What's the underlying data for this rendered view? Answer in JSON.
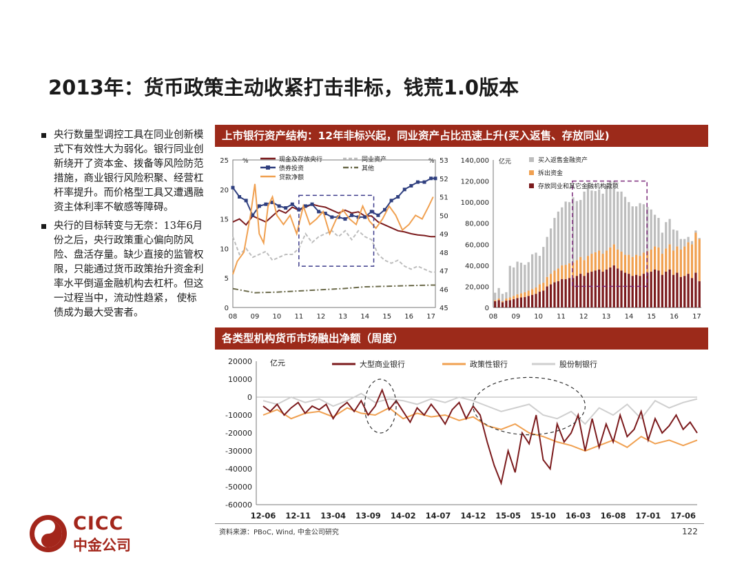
{
  "slide": {
    "title": "2013年：货币政策主动收紧打击非标，钱荒1.0版本",
    "bullets": [
      "央行数量型调控工具在同业创新模式下有效性大为弱化。银行同业创新绕开了资本金、拨备等风险防范措施，商业银行风险积聚、经营杠杆率提升。而价格型工具又遭遇融资主体利率不敏感等障碍。",
      "央行的目标转变与无奈：13年6月份之后，央行政策重心偏向防风险、盘活存量。缺少直接的监管权限，只能通过货币政策抬升资金利率水平倒逼金融机构去杠杆。但这一过程当中，流动性趋紧， 使标债成为最大受害者。"
    ],
    "source": "资料来源：PBoC, Wind, 中金公司研究",
    "page_number": "122",
    "logo": {
      "en": "CICC",
      "cn": "中金公司"
    }
  },
  "panel1": {
    "banner": "上市银行资产结构：12年非标兴起，同业资产占比迅速上升(买入返售、存放同业)"
  },
  "panel2": {
    "banner": "各类型机构货币市场融出净额（周度）"
  },
  "colors": {
    "maroon": "#7b1a1c",
    "orange": "#f0a050",
    "navy": "#2f3f7f",
    "gray": "#bdbdbd",
    "olive": "#6b6a4a",
    "banner": "#9c2a1a"
  },
  "chart_data": [
    {
      "type": "line",
      "left_unit": "%",
      "right_unit": "%",
      "x_ticks": [
        "08",
        "09",
        "10",
        "11",
        "12",
        "13",
        "14",
        "15",
        "16",
        "17"
      ],
      "ylim_left": [
        0,
        25
      ],
      "yticks_left": [
        0,
        5,
        10,
        15,
        20,
        25
      ],
      "ylim_right": [
        45,
        53
      ],
      "yticks_right": [
        45,
        46,
        47,
        48,
        49,
        50,
        51,
        52,
        53
      ],
      "series": [
        {
          "name": "现金及存放央行",
          "axis": "left",
          "color": "#7b1a1c",
          "style": "solid",
          "x": [
            2008.0,
            2008.3,
            2008.6,
            2008.9,
            2009.2,
            2009.5,
            2009.8,
            2010.1,
            2010.4,
            2010.7,
            2011.0,
            2011.3,
            2011.6,
            2011.9,
            2012.2,
            2012.5,
            2012.8,
            2013.1,
            2013.4,
            2013.7,
            2014.0,
            2014.3,
            2014.6,
            2014.9,
            2015.2,
            2015.5,
            2015.8,
            2016.1,
            2016.4,
            2016.7,
            2017.0,
            2017.2
          ],
          "y": [
            14.5,
            15.0,
            14.0,
            15.5,
            15.0,
            14.5,
            15.5,
            16.5,
            16.0,
            17.0,
            16.5,
            17.0,
            17.5,
            17.2,
            17.0,
            16.5,
            16.0,
            16.5,
            16.0,
            16.2,
            15.5,
            15.5,
            14.5,
            14.0,
            13.5,
            13.0,
            12.8,
            12.5,
            12.3,
            12.2,
            12.0,
            12.0
          ]
        },
        {
          "name": "债券投资",
          "axis": "right",
          "color": "#2f3f7f",
          "style": "solid-square",
          "x": [
            2008.0,
            2008.3,
            2008.6,
            2008.9,
            2009.2,
            2009.5,
            2009.8,
            2010.1,
            2010.4,
            2010.7,
            2011.0,
            2011.3,
            2011.6,
            2011.9,
            2012.2,
            2012.5,
            2012.8,
            2013.1,
            2013.4,
            2013.7,
            2014.0,
            2014.3,
            2014.6,
            2014.9,
            2015.2,
            2015.5,
            2015.8,
            2016.1,
            2016.4,
            2016.7,
            2017.0,
            2017.2
          ],
          "y": [
            51.5,
            51.0,
            50.8,
            50.0,
            50.5,
            50.6,
            50.7,
            50.5,
            50.4,
            50.6,
            50.3,
            50.5,
            50.6,
            50.2,
            50.1,
            49.9,
            49.9,
            49.8,
            50.0,
            49.9,
            49.9,
            50.2,
            50.0,
            50.3,
            50.8,
            51.0,
            51.4,
            51.6,
            51.8,
            51.8,
            52.0,
            52.0
          ]
        },
        {
          "name": "同业资产",
          "axis": "left",
          "color": "#bdbdbd",
          "style": "dashed",
          "x": [
            2008.0,
            2008.3,
            2008.6,
            2008.9,
            2009.2,
            2009.5,
            2009.8,
            2010.1,
            2010.4,
            2010.7,
            2011.0,
            2011.3,
            2011.6,
            2011.9,
            2012.2,
            2012.5,
            2012.8,
            2013.1,
            2013.4,
            2013.7,
            2014.0,
            2014.3,
            2014.6,
            2014.9,
            2015.2,
            2015.5,
            2015.8,
            2016.1,
            2016.4,
            2016.7,
            2017.0,
            2017.2
          ],
          "y": [
            12.0,
            9.0,
            10.0,
            8.5,
            9.0,
            9.5,
            8.0,
            8.5,
            9.0,
            9.0,
            10.0,
            12.5,
            11.0,
            12.0,
            12.5,
            13.0,
            12.0,
            13.0,
            11.5,
            13.0,
            12.0,
            11.5,
            9.0,
            8.0,
            7.5,
            8.0,
            7.0,
            6.5,
            7.0,
            6.5,
            6.0,
            6.0
          ]
        },
        {
          "name": "其他",
          "axis": "left",
          "color": "#6b6a4a",
          "style": "dashdot",
          "x": [
            2008.0,
            2009.0,
            2010.0,
            2011.0,
            2012.0,
            2013.0,
            2014.0,
            2015.0,
            2016.0,
            2017.0,
            2017.2
          ],
          "y": [
            3.2,
            2.5,
            2.6,
            2.8,
            3.0,
            3.2,
            3.5,
            3.6,
            3.7,
            3.8,
            3.8
          ]
        },
        {
          "name": "贷款净额",
          "axis": "right",
          "color": "#f0a050",
          "style": "solid",
          "x": [
            2008.0,
            2008.2,
            2008.5,
            2008.8,
            2009.0,
            2009.2,
            2009.4,
            2009.6,
            2009.8,
            2010.0,
            2010.3,
            2010.6,
            2010.9,
            2011.2,
            2011.5,
            2011.8,
            2012.1,
            2012.4,
            2012.7,
            2013.0,
            2013.3,
            2013.6,
            2013.9,
            2014.2,
            2014.5,
            2014.8,
            2015.1,
            2015.4,
            2015.7,
            2016.0,
            2016.3,
            2016.6,
            2016.9,
            2017.1
          ],
          "y": [
            46.8,
            47.5,
            48.0,
            50.0,
            51.7,
            49.0,
            48.5,
            50.5,
            51.0,
            50.0,
            49.5,
            50.0,
            49.0,
            50.5,
            49.5,
            49.8,
            50.2,
            49.0,
            49.8,
            50.3,
            49.8,
            49.5,
            50.5,
            49.7,
            49.3,
            49.8,
            50.5,
            50.0,
            49.2,
            49.5,
            50.0,
            49.8,
            50.5,
            51.0
          ]
        }
      ],
      "highlight_box": {
        "x": [
          2011.0,
          2014.4
        ],
        "y": [
          7,
          19
        ]
      }
    },
    {
      "type": "bar",
      "unit": "亿元",
      "stacked": true,
      "x_ticks": [
        "08",
        "09",
        "10",
        "11",
        "12",
        "13",
        "14",
        "15",
        "16",
        "17"
      ],
      "ylim": [
        0,
        140000
      ],
      "yticks": [
        0,
        20000,
        40000,
        60000,
        80000,
        100000,
        120000,
        140000
      ],
      "series": [
        {
          "name": "存放同业和其它金融机构款项",
          "color": "#7b1a1c",
          "values": [
            6000,
            7000,
            5000,
            6500,
            7000,
            8000,
            9000,
            9500,
            10000,
            11000,
            12000,
            13000,
            15000,
            16000,
            20000,
            22000,
            24000,
            25000,
            27000,
            27000,
            28000,
            28000,
            30000,
            32000,
            30000,
            33000,
            34000,
            35000,
            36000,
            34000,
            36000,
            38000,
            40000,
            37000,
            35000,
            33000,
            32000,
            30000,
            31000,
            30000,
            32000,
            33000,
            34000,
            36000,
            35000,
            31000,
            34000,
            36000,
            31000,
            33000,
            29000,
            30000,
            32000,
            28000,
            33000,
            25000
          ]
        },
        {
          "name": "拆出资金",
          "color": "#f0a050",
          "values": [
            1000,
            1500,
            1000,
            2000,
            2500,
            3000,
            3500,
            4000,
            4500,
            5000,
            5500,
            6000,
            7000,
            7500,
            9000,
            10000,
            11000,
            12000,
            13000,
            13500,
            14000,
            14500,
            15000,
            16000,
            15000,
            16000,
            17000,
            17500,
            18000,
            17000,
            18000,
            19000,
            20000,
            18000,
            18000,
            17000,
            18000,
            18000,
            19000,
            19000,
            20000,
            20500,
            21000,
            22000,
            22000,
            20000,
            22000,
            24000,
            23000,
            25000,
            26000,
            28000,
            30000,
            32000,
            38000,
            40000
          ]
        },
        {
          "name": "买入返售金融资产",
          "color": "#bdbdbd",
          "values": [
            7000,
            10000,
            7000,
            6000,
            30000,
            27000,
            31000,
            29000,
            26000,
            27000,
            33000,
            33000,
            27000,
            34000,
            38000,
            43000,
            50000,
            54000,
            55000,
            60000,
            58000,
            62000,
            56000,
            54000,
            65000,
            69000,
            60000,
            58000,
            58000,
            57000,
            62000,
            63000,
            60000,
            55000,
            57000,
            55000,
            50000,
            48000,
            46000,
            50000,
            46000,
            42000,
            38000,
            30000,
            28000,
            20000,
            25000,
            24000,
            20000,
            15000,
            10000,
            7000,
            5000,
            3000,
            2000,
            1000
          ]
        }
      ],
      "highlight_box": {
        "x": [
          2011.5,
          2014.8
        ],
        "y": [
          20000,
          120000
        ]
      }
    },
    {
      "type": "line",
      "unit": "亿元",
      "x_ticks": [
        "12-06",
        "12-11",
        "13-04",
        "13-09",
        "14-02",
        "14-07",
        "14-12",
        "15-05",
        "15-10",
        "16-03",
        "16-08",
        "17-01",
        "17-06"
      ],
      "ylim": [
        -60000,
        20000
      ],
      "yticks": [
        20000,
        10000,
        0,
        -10000,
        -20000,
        -30000,
        -40000,
        -50000,
        -60000
      ],
      "series": [
        {
          "name": "大型商业银行",
          "color": "#7b1a1c",
          "x": [
            0,
            0.2,
            0.4,
            0.6,
            0.8,
            1.0,
            1.2,
            1.4,
            1.6,
            1.8,
            2.0,
            2.2,
            2.4,
            2.6,
            2.8,
            3.0,
            3.2,
            3.4,
            3.6,
            3.8,
            4.0,
            4.2,
            4.4,
            4.6,
            4.8,
            5.0,
            5.2,
            5.4,
            5.6,
            5.8,
            6.0,
            6.2,
            6.4,
            6.6,
            6.8,
            7.0,
            7.2,
            7.4,
            7.6,
            7.8,
            8.0,
            8.2,
            8.4,
            8.6,
            8.8,
            9.0,
            9.2,
            9.4,
            9.6,
            9.8,
            10.0,
            10.2,
            10.4,
            10.6,
            10.8,
            11.0,
            11.2,
            11.4,
            11.6,
            11.8,
            12.0,
            12.2,
            12.4
          ],
          "y": [
            -5000,
            -8000,
            -4000,
            -10000,
            -6000,
            -3000,
            -9000,
            -5000,
            -7000,
            -4000,
            -12000,
            -6000,
            -3000,
            -8000,
            -2000,
            -10000,
            -5000,
            4000,
            -7000,
            -2000,
            -8000,
            -14000,
            -6000,
            -10000,
            -4000,
            -9000,
            -15000,
            -7000,
            -3000,
            -12000,
            -5000,
            -10000,
            -25000,
            -38000,
            -48000,
            -30000,
            -42000,
            -20000,
            -26000,
            -10000,
            -35000,
            -40000,
            -15000,
            -25000,
            -20000,
            -10000,
            -30000,
            -12000,
            -28000,
            -15000,
            -25000,
            -10000,
            -22000,
            -18000,
            -8000,
            -24000,
            -12000,
            -20000,
            -16000,
            -10000,
            -18000,
            -14000,
            -20000
          ]
        },
        {
          "name": "政策性银行",
          "color": "#f0a050",
          "x": [
            0,
            0.4,
            0.8,
            1.2,
            1.6,
            2.0,
            2.4,
            2.8,
            3.2,
            3.6,
            4.0,
            4.4,
            4.8,
            5.2,
            5.6,
            6.0,
            6.4,
            6.8,
            7.2,
            7.6,
            8.0,
            8.4,
            8.8,
            9.2,
            9.6,
            10.0,
            10.4,
            10.8,
            11.2,
            11.6,
            12.0,
            12.4
          ],
          "y": [
            -10000,
            -7000,
            -12000,
            -9000,
            -8000,
            -11000,
            -6000,
            -9000,
            -10000,
            -6000,
            -12000,
            -9000,
            -11000,
            -10000,
            -13000,
            -11000,
            -16000,
            -18000,
            -15000,
            -20000,
            -22000,
            -25000,
            -27000,
            -30000,
            -27000,
            -24000,
            -28000,
            -22000,
            -26000,
            -24000,
            -27000,
            -24000
          ]
        },
        {
          "name": "股份制银行",
          "color": "#cfcfcf",
          "x": [
            0,
            0.4,
            0.8,
            1.2,
            1.6,
            2.0,
            2.4,
            2.8,
            3.2,
            3.6,
            4.0,
            4.4,
            4.8,
            5.2,
            5.6,
            6.0,
            6.4,
            6.8,
            7.2,
            7.6,
            8.0,
            8.4,
            8.8,
            9.2,
            9.6,
            10.0,
            10.4,
            10.8,
            11.2,
            11.6,
            12.0,
            12.4
          ],
          "y": [
            -2000,
            -4000,
            0,
            -3000,
            -1000,
            -5000,
            -2000,
            2000,
            -3000,
            -1000,
            -2000,
            -4000,
            -1000,
            -3000,
            0,
            -2000,
            -5000,
            -8000,
            -6000,
            -4000,
            -10000,
            -12000,
            -8000,
            -15000,
            -6000,
            -10000,
            -4000,
            -12000,
            -2000,
            -6000,
            -3000,
            -1000
          ]
        }
      ],
      "highlight_ellipses": [
        {
          "cx": 3.35,
          "cy": -5000,
          "rx": 0.45,
          "ry": 15000
        },
        {
          "cx": 7.6,
          "cy": -5000,
          "rx": 1.6,
          "ry": 16000
        }
      ]
    }
  ]
}
